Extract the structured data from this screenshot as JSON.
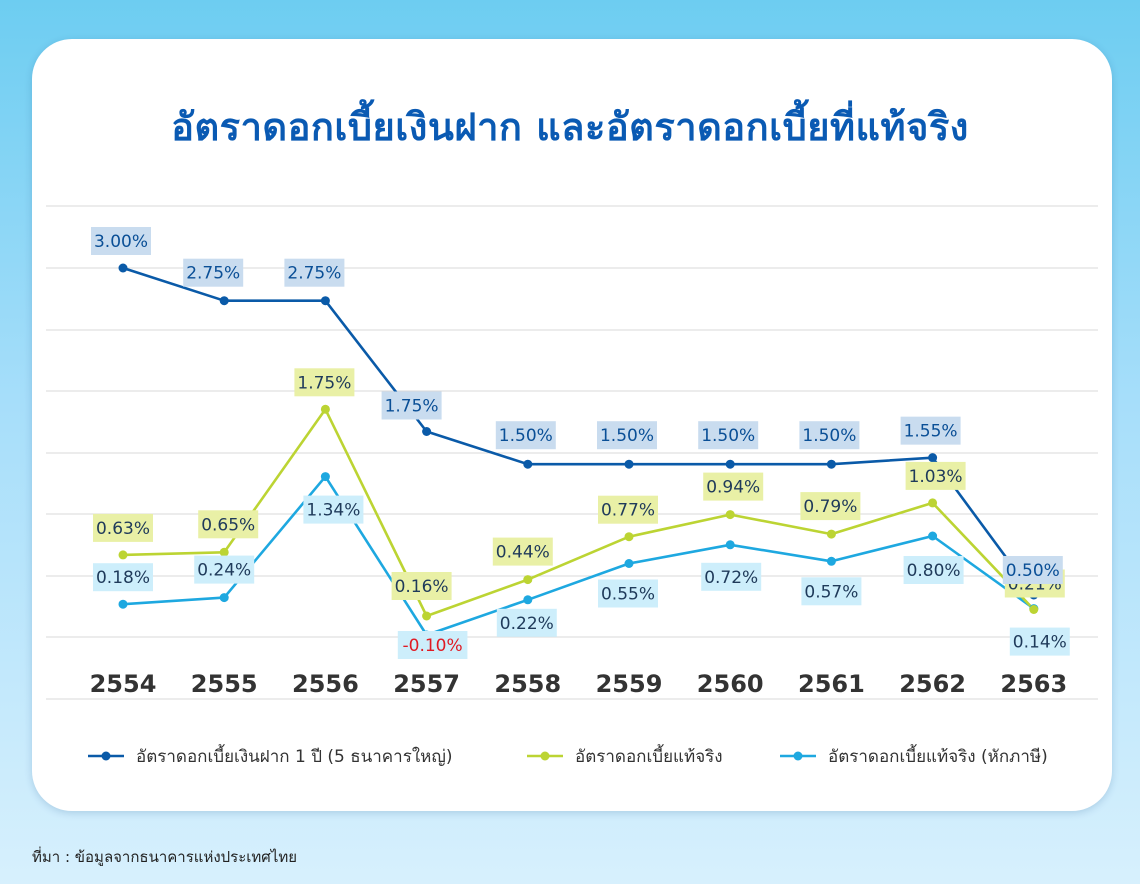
{
  "title": "อัตราดอกเบี้ยเงินฝาก และอัตราดอกเบี้ยที่แท้จริง",
  "source": "ที่มา : ข้อมูลจากธนาคารแห่งประเทศไทย",
  "colors": {
    "deposit": "#0a5aa8",
    "real": "#bcd433",
    "real_after_tax": "#1ea8e0",
    "deposit_label_bg": "#c9dcef",
    "real_label_bg": "#e9f0a6",
    "tax_label_bg": "#cdeefb",
    "negative_text": "#e01b24",
    "axis_text": "#333333",
    "grid": "#d9d9d9"
  },
  "chart_data": {
    "type": "line",
    "categories": [
      "2554",
      "2555",
      "2556",
      "2557",
      "2558",
      "2559",
      "2560",
      "2561",
      "2562",
      "2563"
    ],
    "series": [
      {
        "key": "deposit",
        "name": "อัตราดอกเบี้ยเงินฝาก 1 ปี (5 ธนาคารใหญ่)",
        "values": [
          3.0,
          2.75,
          2.75,
          1.75,
          1.5,
          1.5,
          1.5,
          1.5,
          1.55,
          0.5
        ],
        "labels": [
          "3.00%",
          "2.75%",
          "2.75%",
          "1.75%",
          "1.50%",
          "1.50%",
          "1.50%",
          "1.50%",
          "1.55%",
          "0.50%"
        ]
      },
      {
        "key": "real",
        "name": "อัตราดอกเบี้ยแท้จริง",
        "values": [
          0.63,
          0.65,
          1.75,
          0.16,
          0.44,
          0.77,
          0.94,
          0.79,
          1.03,
          0.21
        ],
        "labels": [
          "0.63%",
          "0.65%",
          "1.75%",
          "0.16%",
          "0.44%",
          "0.77%",
          "0.94%",
          "0.79%",
          "1.03%",
          "0.21%"
        ]
      },
      {
        "key": "real_after_tax",
        "name": "อัตราดอกเบี้ยแท้จริง (หักภาษี)",
        "values": [
          0.18,
          0.24,
          1.34,
          -0.1,
          0.22,
          0.55,
          0.72,
          0.57,
          0.8,
          0.14
        ],
        "labels": [
          "0.18%",
          "0.24%",
          "1.34%",
          "-0.10%",
          "0.22%",
          "0.55%",
          "0.72%",
          "0.57%",
          "0.80%",
          "0.14%"
        ]
      }
    ],
    "xlabel": "",
    "ylabel": "",
    "grid": true,
    "legend": "bottom"
  }
}
